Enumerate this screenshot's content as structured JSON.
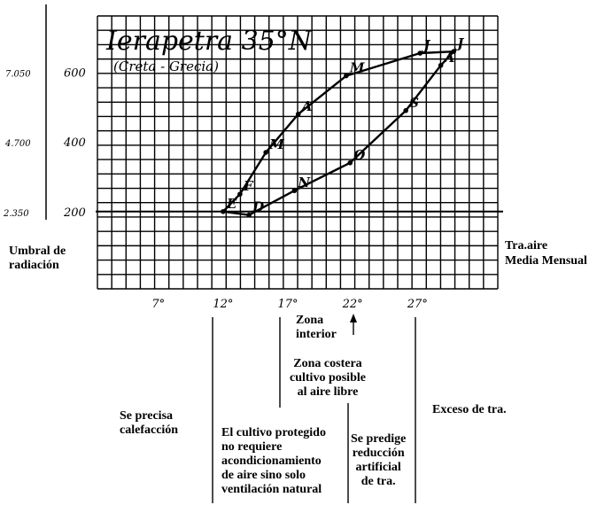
{
  "chart_data": {
    "type": "line",
    "title": "Ierapetra 35°N",
    "subtitle": "(Creta - Grecia)",
    "x_ticks": [
      "7°",
      "12°",
      "17°",
      "22°",
      "27°"
    ],
    "y_ticks": [
      "200",
      "400",
      "600"
    ],
    "y_ticks_outer": [
      "2.350",
      "4.700",
      "7.050"
    ],
    "ylabel": "Umbral de radiación",
    "xlabel": "Tra.aire Media Mensual",
    "xlim": [
      2.3,
      33.2
    ],
    "ylim": [
      -22,
      762
    ],
    "threshold_y": 200,
    "series": [
      {
        "points": [
          {
            "label": "E",
            "x": 12.0,
            "y": 200
          },
          {
            "label": "F",
            "x": 13.3,
            "y": 250
          },
          {
            "label": "M",
            "x": 15.3,
            "y": 370
          },
          {
            "label": "A",
            "x": 17.8,
            "y": 480
          },
          {
            "label": "M",
            "x": 21.5,
            "y": 590
          },
          {
            "label": "J",
            "x": 27.2,
            "y": 655
          },
          {
            "label": "J",
            "x": 29.8,
            "y": 660
          },
          {
            "label": "A",
            "x": 28.8,
            "y": 620
          },
          {
            "label": "S",
            "x": 26.1,
            "y": 490
          },
          {
            "label": "O",
            "x": 21.8,
            "y": 340
          },
          {
            "label": "N",
            "x": 17.5,
            "y": 260
          },
          {
            "label": "D",
            "x": 14.0,
            "y": 190
          },
          {
            "label": "E",
            "x": 12.0,
            "y": 200
          }
        ]
      }
    ]
  },
  "annotations": {
    "zona_interior": "Zona\ninterior",
    "zona_costera": "Zona costera\ncultivo posible\nal aire libre",
    "exceso": "Exceso de tra.",
    "calefaccion": "Se precisa\ncalefacción",
    "ventilacion": "El cultivo protegido\nno requiere\nacondicionamiento\nde aire sino solo\nventilación natural",
    "reduccion": "Se predige\nreducción\nartificial\nde tra."
  }
}
